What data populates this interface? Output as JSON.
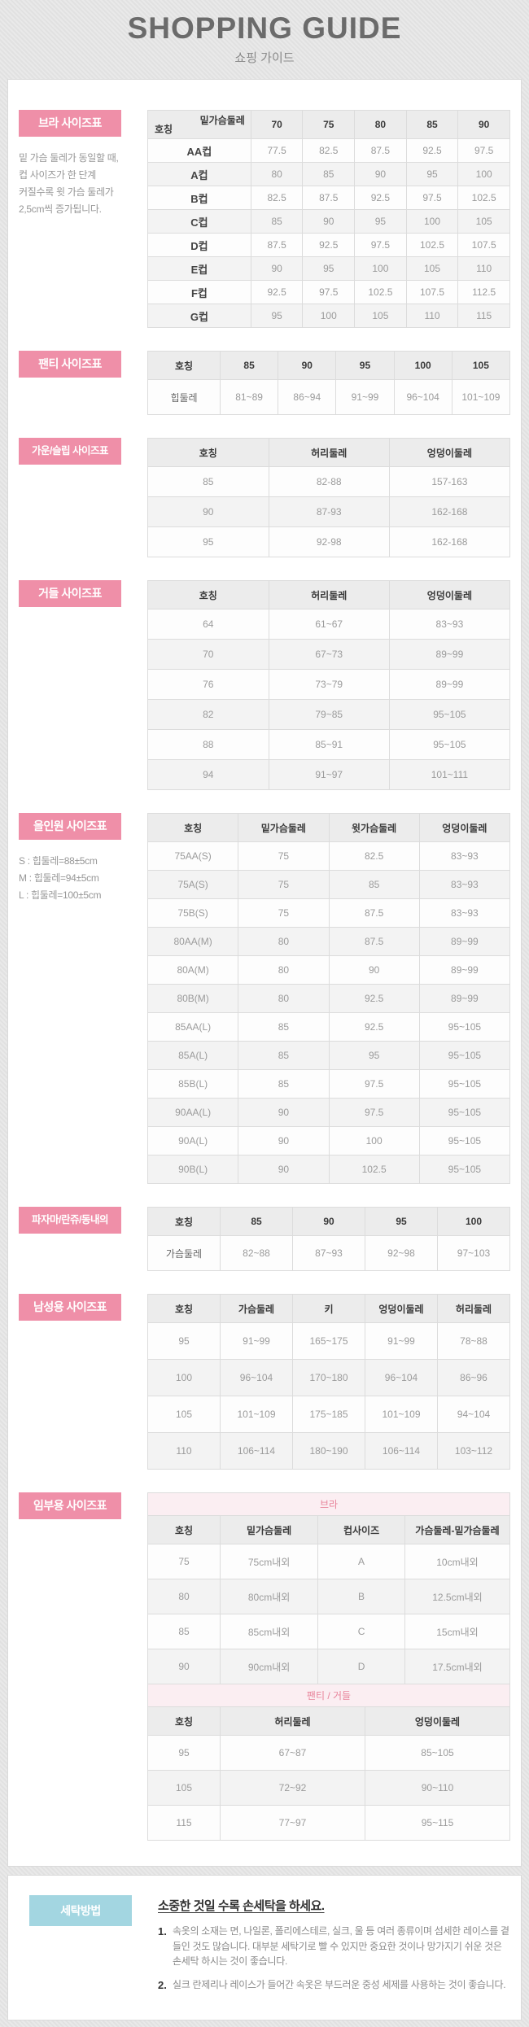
{
  "header": {
    "title": "SHOPPING GUIDE",
    "subtitle": "쇼핑 가이드"
  },
  "colors": {
    "accent_pink": "#ef8fa8",
    "accent_blue": "#a3d6e1",
    "band_bg": "#fbeef2",
    "band_text": "#e8849b"
  },
  "sections": {
    "bra": {
      "label": "브라 사이즈표",
      "note": "밑 가슴 둘레가 동일할 때,\n컵 사이즈가 한 단계\n커질수록 윗 가슴 둘레가\n2,5cm씩 증가됩니다.",
      "table": {
        "diag": {
          "top": "밑가슴둘레",
          "bottom": "호칭"
        },
        "columns": [
          "70",
          "75",
          "80",
          "85",
          "90"
        ],
        "rows": [
          {
            "name": "AA컵",
            "values": [
              "77.5",
              "82.5",
              "87.5",
              "92.5",
              "97.5"
            ]
          },
          {
            "name": "A컵",
            "values": [
              "80",
              "85",
              "90",
              "95",
              "100"
            ]
          },
          {
            "name": "B컵",
            "values": [
              "82.5",
              "87.5",
              "92.5",
              "97.5",
              "102.5"
            ]
          },
          {
            "name": "C컵",
            "values": [
              "85",
              "90",
              "95",
              "100",
              "105"
            ]
          },
          {
            "name": "D컵",
            "values": [
              "87.5",
              "92.5",
              "97.5",
              "102.5",
              "107.5"
            ]
          },
          {
            "name": "E컵",
            "values": [
              "90",
              "95",
              "100",
              "105",
              "110"
            ]
          },
          {
            "name": "F컵",
            "values": [
              "92.5",
              "97.5",
              "102.5",
              "107.5",
              "112.5"
            ]
          },
          {
            "name": "G컵",
            "values": [
              "95",
              "100",
              "105",
              "110",
              "115"
            ]
          }
        ]
      }
    },
    "panty": {
      "label": "팬티 사이즈표",
      "table": {
        "headers": [
          "호칭",
          "85",
          "90",
          "95",
          "100",
          "105"
        ],
        "rows": [
          [
            "힙둘레",
            "81~89",
            "86~94",
            "91~99",
            "96~104",
            "101~109"
          ]
        ]
      }
    },
    "gown": {
      "label": "가운/슬립 사이즈표",
      "table": {
        "headers": [
          "호칭",
          "허리둘레",
          "엉덩이둘레"
        ],
        "rows": [
          [
            "85",
            "82-88",
            "157-163"
          ],
          [
            "90",
            "87-93",
            "162-168"
          ],
          [
            "95",
            "92-98",
            "162-168"
          ]
        ]
      }
    },
    "girdle": {
      "label": "거들 사이즈표",
      "table": {
        "headers": [
          "호칭",
          "허리둘레",
          "엉덩이둘레"
        ],
        "rows": [
          [
            "64",
            "61~67",
            "83~93"
          ],
          [
            "70",
            "67~73",
            "89~99"
          ],
          [
            "76",
            "73~79",
            "89~99"
          ],
          [
            "82",
            "79~85",
            "95~105"
          ],
          [
            "88",
            "85~91",
            "95~105"
          ],
          [
            "94",
            "91~97",
            "101~111"
          ]
        ]
      }
    },
    "allinone": {
      "label": "올인원 사이즈표",
      "note": "S : 힙둘레=88±5cm\nM : 힙둘레=94±5cm\nL : 힙둘레=100±5cm",
      "table": {
        "headers": [
          "호칭",
          "밑가슴둘레",
          "윗가슴둘레",
          "엉덩이둘레"
        ],
        "rows": [
          [
            "75AA(S)",
            "75",
            "82.5",
            "83~93"
          ],
          [
            "75A(S)",
            "75",
            "85",
            "83~93"
          ],
          [
            "75B(S)",
            "75",
            "87.5",
            "83~93"
          ],
          [
            "80AA(M)",
            "80",
            "87.5",
            "89~99"
          ],
          [
            "80A(M)",
            "80",
            "90",
            "89~99"
          ],
          [
            "80B(M)",
            "80",
            "92.5",
            "89~99"
          ],
          [
            "85AA(L)",
            "85",
            "92.5",
            "95~105"
          ],
          [
            "85A(L)",
            "85",
            "95",
            "95~105"
          ],
          [
            "85B(L)",
            "85",
            "97.5",
            "95~105"
          ],
          [
            "90AA(L)",
            "90",
            "97.5",
            "95~105"
          ],
          [
            "90A(L)",
            "90",
            "100",
            "95~105"
          ],
          [
            "90B(L)",
            "90",
            "102.5",
            "95~105"
          ]
        ]
      }
    },
    "pajama": {
      "label": "파자마/란쥬/동내의",
      "table": {
        "headers": [
          "호칭",
          "85",
          "90",
          "95",
          "100"
        ],
        "rows": [
          [
            "가슴둘레",
            "82~88",
            "87~93",
            "92~98",
            "97~103"
          ]
        ]
      }
    },
    "men": {
      "label": "남성용 사이즈표",
      "table": {
        "headers": [
          "호칭",
          "가슴둘레",
          "키",
          "엉덩이둘레",
          "허리둘레"
        ],
        "rows": [
          [
            "95",
            "91~99",
            "165~175",
            "91~99",
            "78~88"
          ],
          [
            "100",
            "96~104",
            "170~180",
            "96~104",
            "86~96"
          ],
          [
            "105",
            "101~109",
            "175~185",
            "101~109",
            "94~104"
          ],
          [
            "110",
            "106~114",
            "180~190",
            "106~114",
            "103~112"
          ]
        ]
      }
    },
    "maternity": {
      "label": "임부용 사이즈표",
      "groups": [
        {
          "band": "브라",
          "headers": [
            "호칭",
            "밑가슴둘레",
            "컵사이즈",
            "가슴둘레-밑가슴둘레"
          ],
          "rows": [
            [
              "75",
              "75cm내외",
              "A",
              "10cm내외"
            ],
            [
              "80",
              "80cm내외",
              "B",
              "12.5cm내외"
            ],
            [
              "85",
              "85cm내외",
              "C",
              "15cm내외"
            ],
            [
              "90",
              "90cm내외",
              "D",
              "17.5cm내외"
            ]
          ]
        },
        {
          "band": "팬티 / 거들",
          "headers": [
            "호칭",
            "허리둘레",
            "엉덩이둘레"
          ],
          "rows": [
            [
              "95",
              "67~87",
              "85~105"
            ],
            [
              "105",
              "72~92",
              "90~110"
            ],
            [
              "115",
              "77~97",
              "95~115"
            ]
          ]
        }
      ]
    },
    "washing": {
      "label": "세탁방법",
      "title": "소중한 것일 수록 손세탁을 하세요.",
      "items": [
        {
          "no": "1.",
          "text": "속옷의 소재는 면, 나일론, 폴리에스테르, 실크, 울 등 여러 종류이며 섬세한 레이스를 곁들인 것도 많습니다. 대부분 세탁기로 빨 수 있지만 중요한 것이나 망가지기 쉬운 것은 손세탁 하시는 것이 좋습니다."
        },
        {
          "no": "2.",
          "text": "실크 란제리나 레이스가 들어간 속옷은 부드러운 중성 세제를 사용하는 것이 좋습니다."
        }
      ]
    }
  }
}
